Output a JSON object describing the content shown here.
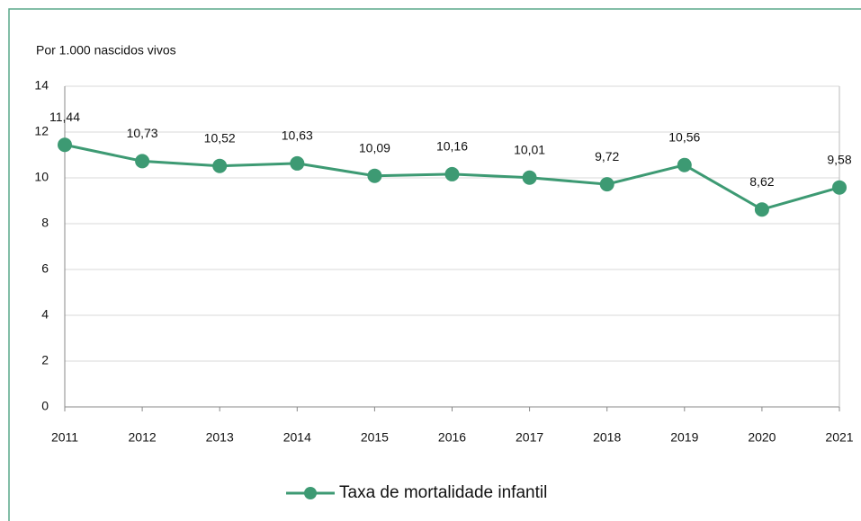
{
  "chart_data": {
    "type": "line",
    "y_axis_label": "Por 1.000 nascidos vivos",
    "categories": [
      "2011",
      "2012",
      "2013",
      "2014",
      "2015",
      "2016",
      "2017",
      "2018",
      "2019",
      "2020",
      "2021"
    ],
    "series": [
      {
        "name": "Taxa de mortalidade infantil",
        "color": "#3d9a73",
        "values": [
          11.44,
          10.73,
          10.52,
          10.63,
          10.09,
          10.16,
          10.01,
          9.72,
          10.56,
          8.62,
          9.58
        ],
        "value_labels": [
          "11,44",
          "10,73",
          "10,52",
          "10,63",
          "10,09",
          "10,16",
          "10,01",
          "9,72",
          "10,56",
          "8,62",
          "9,58"
        ]
      }
    ],
    "ylim": [
      0,
      14
    ],
    "yticks": [
      0,
      2,
      4,
      6,
      8,
      10,
      12,
      14
    ],
    "grid": true,
    "legend": "bottom"
  }
}
